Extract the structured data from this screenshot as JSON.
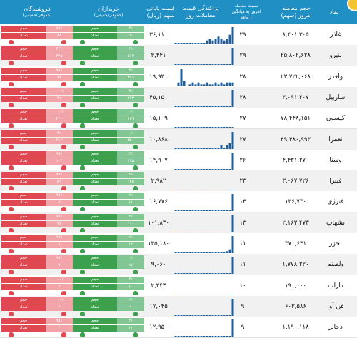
{
  "header": {
    "symbol": "نماد",
    "volume_line1": "حجم معامله",
    "volume_line2": "امروز (سهم)",
    "ratio_line1": "نسبت معامله",
    "ratio_line2": "امروز به میانگین",
    "ratio_line3": "۱ ماهه",
    "spark_line1": "پراکندگی قیمت",
    "spark_line2": "معاملات روز",
    "price_line1": "قیمت پایانی",
    "price_line2": "سهم (ریال)",
    "buyers_line1": "خریداران",
    "buyers_line2": "(حقوقی/حقیقی)",
    "sellers_line1": "فروشندگان",
    "sellers_line2": "(حقوقی/حقیقی)"
  },
  "colors": {
    "header": "#1f8fc4",
    "buy": "#3ca04f",
    "sell": "#e04851",
    "spark": "#1f5f99"
  },
  "bar_labels": {
    "volume": "حجم",
    "count": "تعداد"
  },
  "rows": [
    {
      "symbol": "غاذر",
      "volume": "۸,۴۰۱,۳۰۵",
      "ratio": "۲۹",
      "price": "۳۶,۱۱۰",
      "buy_a": "۳٪",
      "buy_b": "۱۵۰",
      "sell_a": "۹۹٪",
      "sell_b": "۸۸",
      "spark": [
        0,
        0,
        0,
        0,
        0,
        0,
        0,
        0,
        0,
        0,
        0,
        2,
        3,
        2,
        3,
        4,
        3,
        2,
        3,
        5,
        9
      ]
    },
    {
      "symbol": "بنیرو",
      "volume": "۲۵,۸۰۲,۶۲۸",
      "ratio": "۲۹",
      "price": "۲,۴۴۱",
      "buy_a": "۳٪",
      "buy_b": "۵۱۲",
      "sell_a": "۳۳٪",
      "sell_b": "۳۲۵",
      "spark": [
        0,
        0,
        0,
        0,
        0,
        0,
        0,
        0,
        0,
        0,
        0,
        0,
        0,
        0,
        0,
        0,
        0,
        0,
        0,
        0,
        1
      ]
    },
    {
      "symbol": "ولغدر",
      "volume": "۲۳,۷۲۲,۰۶۸",
      "ratio": "۲۸",
      "price": "۱۹,۹۳۰",
      "buy_a": "۳٪",
      "buy_b": "۳۹۱",
      "sell_a": "۹۹٪",
      "sell_b": "۷۸",
      "spark": [
        0,
        2,
        9,
        3,
        0,
        1,
        2,
        1,
        2,
        1,
        1,
        2,
        1,
        1,
        2,
        1,
        2,
        1,
        2,
        2,
        2
      ]
    },
    {
      "symbol": "ساربیل",
      "volume": "۳,۰۹۱,۲۰۷",
      "ratio": "۲۸",
      "price": "۴۵,۱۵۰",
      "buy_a": "۳٪",
      "buy_b": "۲۷۳",
      "sell_a": "۱۰۰٪",
      "sell_b": "۴۱",
      "spark": [
        0,
        0,
        0,
        0,
        0,
        0,
        0,
        0,
        0,
        0,
        0,
        0,
        0,
        0,
        0,
        0,
        0,
        0,
        0,
        0,
        9
      ]
    },
    {
      "symbol": "کیسون",
      "volume": "۷۸,۴۴۸,۱۵۱",
      "ratio": "۲۷",
      "price": "۱۵,۱۰۹",
      "buy_a": "۰٪",
      "buy_b": "۴۳۹",
      "sell_a": "۱۰۰٪",
      "sell_b": "۴۲۰",
      "spark": [
        0,
        0,
        0,
        0,
        0,
        0,
        0,
        0,
        0,
        0,
        0,
        0,
        0,
        0,
        0,
        0,
        0,
        0,
        0,
        0,
        0
      ]
    },
    {
      "symbol": "ثعمرا",
      "volume": "۴۹,۴۸۰,۹۹۳",
      "ratio": "۲۷",
      "price": "۱۰,۸۶۸",
      "buy_a": "۰٪",
      "buy_b": "۳۵۰",
      "sell_a": "۴٪",
      "sell_b": "۲۱۲",
      "spark": [
        0,
        0,
        0,
        0,
        0,
        0,
        0,
        0,
        0,
        0,
        0,
        0,
        0,
        0,
        0,
        0,
        2,
        0,
        2,
        3,
        9
      ]
    },
    {
      "symbol": "وسنا",
      "volume": "۴,۴۳۱,۲۷۰",
      "ratio": "۲۶",
      "price": "۱۴,۹۰۷",
      "buy_a": "۳٪",
      "buy_b": "۲۷۵",
      "sell_a": "۹۹٪",
      "sell_b": "۱۰۴",
      "spark": [
        0,
        0,
        0,
        0,
        0,
        0,
        0,
        0,
        0,
        0,
        0,
        0,
        0,
        0,
        0,
        0,
        0,
        0,
        0,
        0,
        9
      ]
    },
    {
      "symbol": "فبیرا",
      "volume": "۳,۰۶۷,۷۲۶",
      "ratio": "۲۳",
      "price": "۲,۹۸۲",
      "buy_a": "۳٪",
      "buy_b": "۱۳۸",
      "sell_a": "۹۹٪",
      "sell_b": "۵۹",
      "spark": [
        0,
        0,
        0,
        0,
        0,
        0,
        0,
        0,
        0,
        0,
        0,
        0,
        0,
        0,
        0,
        0,
        0,
        0,
        0,
        0,
        0
      ]
    },
    {
      "symbol": "فنرژی",
      "volume": "۱۳۶,۷۳۰",
      "ratio": "۱۴",
      "price": "۱۶,۷۷۶",
      "buy_a": "۲٪",
      "buy_b": "۱۱",
      "sell_a": "۹۹٪",
      "sell_b": "۷",
      "spark": [
        0,
        0,
        0,
        0,
        0,
        0,
        0,
        0,
        0,
        0,
        0,
        0,
        0,
        0,
        0,
        0,
        0,
        0,
        0,
        0,
        9
      ]
    },
    {
      "symbol": "بشهاب",
      "volume": "۲,۱۶۳,۴۷۳",
      "ratio": "۱۳",
      "price": "۱۰۱,۸۳۰",
      "buy_a": "۳٪",
      "buy_b": "۱۰۰",
      "sell_a": "۹۹٪",
      "sell_b": "۳۸",
      "spark": [
        0,
        0,
        0,
        0,
        0,
        0,
        0,
        0,
        0,
        0,
        0,
        0,
        0,
        0,
        0,
        0,
        0,
        0,
        0,
        0,
        9
      ]
    },
    {
      "symbol": "لخزر",
      "volume": "۳۷۰,۶۴۱",
      "ratio": "۱۱",
      "price": "۱۳۵,۱۸۰",
      "buy_a": "۲٪",
      "buy_b": "۱۲",
      "sell_a": "۹۹٪",
      "sell_b": "۸",
      "spark": [
        0,
        0,
        0,
        0,
        0,
        0,
        0,
        0,
        0,
        0,
        0,
        0,
        0,
        0,
        0,
        0,
        0,
        0,
        1,
        2,
        9
      ]
    },
    {
      "symbol": "ولصنم",
      "volume": "۱,۷۷۸,۲۲۰",
      "ratio": "۱۱",
      "price": "۹,۰۶۰",
      "buy_a": "۰٪",
      "buy_b": "۹۷",
      "sell_a": "۹۹٪",
      "sell_b": "۹",
      "spark": [
        0,
        0,
        0,
        0,
        0,
        0,
        0,
        0,
        0,
        0,
        0,
        0,
        0,
        0,
        0,
        0,
        0,
        0,
        0,
        0,
        9
      ]
    },
    {
      "symbol": "داراب",
      "volume": "۱۹۰,۰۰۰",
      "ratio": "۱۰",
      "price": "۲,۴۴۳",
      "buy_a": "۳٪",
      "buy_b": "۱۰",
      "sell_a": "۱۰۰٪",
      "sell_b": "۸",
      "spark": [
        0,
        0,
        0,
        0,
        0,
        0,
        0,
        0,
        0,
        0,
        0,
        0,
        0,
        0,
        0,
        0,
        0,
        0,
        0,
        0,
        0
      ]
    },
    {
      "symbol": "فن آوا",
      "volume": "۶۰۳,۵۸۶",
      "ratio": "۹",
      "price": "۱۷,۰۴۵",
      "buy_a": "۳٪",
      "buy_b": "۹",
      "sell_a": "۱۰۰٪",
      "sell_b": "۳",
      "spark": [
        0,
        0,
        0,
        0,
        0,
        0,
        0,
        0,
        0,
        0,
        0,
        0,
        0,
        0,
        0,
        0,
        0,
        0,
        0,
        0,
        9
      ]
    },
    {
      "symbol": "دجابر",
      "volume": "۱,۱۹۰,۱۱۸",
      "ratio": "۹",
      "price": "۱۲,۹۵۰",
      "buy_a": "۳٪",
      "buy_b": "۱۱",
      "sell_a": "۹۹٪",
      "sell_b": "۴",
      "spark": [
        0,
        0,
        0,
        0,
        0,
        0,
        0,
        0,
        0,
        0,
        0,
        0,
        0,
        0,
        0,
        0,
        0,
        0,
        0,
        0,
        9
      ]
    }
  ]
}
